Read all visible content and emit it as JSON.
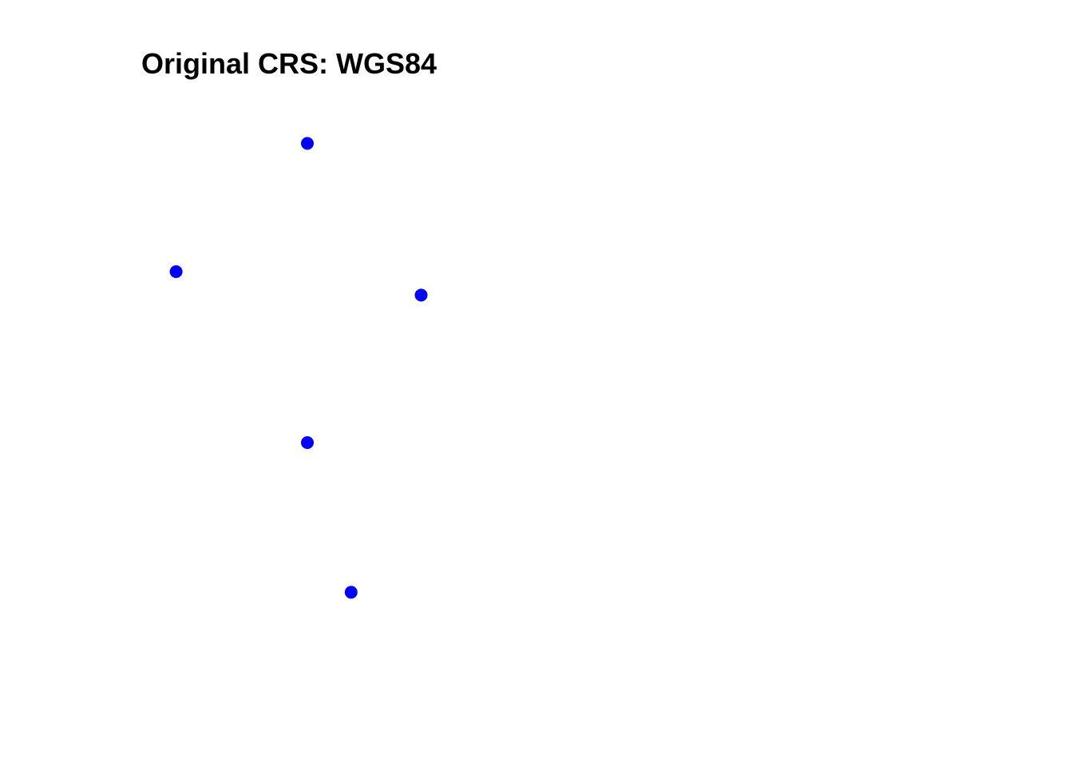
{
  "chart_data": {
    "type": "scatter",
    "title": "Original CRS: WGS84",
    "xlabel": "",
    "ylabel": "",
    "grid": false,
    "axes_visible": false,
    "marker_color": "#0000ff",
    "series": [
      {
        "points": [
          {
            "x": -3,
            "y": 4
          },
          {
            "x": -6,
            "y": 1
          },
          {
            "x": -0.4,
            "y": 0.45
          },
          {
            "x": -3,
            "y": -3
          },
          {
            "x": -2,
            "y": -6.5
          }
        ]
      }
    ]
  }
}
